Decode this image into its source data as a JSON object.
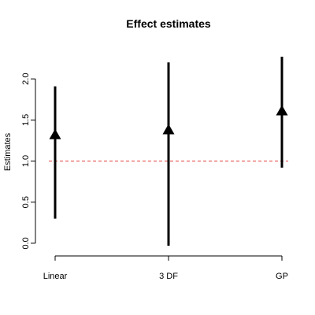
{
  "chart_data": {
    "type": "scatter",
    "title": "Effect estimates",
    "xlabel": "",
    "ylabel": "Estimates",
    "categories": [
      "Linear",
      "3 DF",
      "GP"
    ],
    "estimates": [
      1.32,
      1.38,
      1.61
    ],
    "lower": [
      0.3,
      -0.03,
      0.92
    ],
    "upper": [
      1.91,
      2.2,
      2.27
    ],
    "yticks": [
      0.0,
      0.5,
      1.0,
      1.5,
      2.0
    ],
    "ytick_labels": [
      "0.0",
      "0.5",
      "1.0",
      "1.5",
      "2.0"
    ],
    "ylim": [
      -0.03,
      2.27
    ],
    "reference_line": {
      "value": 1.0,
      "color": "#e0403a",
      "style": "dashed"
    },
    "marker": "triangle",
    "color": "#000000",
    "grid": false,
    "legend": "none"
  }
}
